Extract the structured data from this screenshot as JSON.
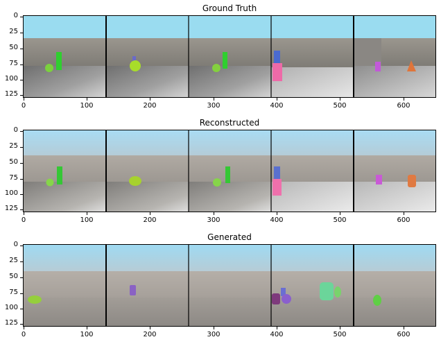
{
  "panels": [
    {
      "title": "Ground Truth"
    },
    {
      "title": "Reconstructed"
    },
    {
      "title": "Generated"
    }
  ],
  "x_ticks": [
    "0",
    "100",
    "200",
    "300",
    "400",
    "500",
    "600"
  ],
  "y_ticks": [
    "0",
    "25",
    "50",
    "75",
    "100",
    "125"
  ]
}
